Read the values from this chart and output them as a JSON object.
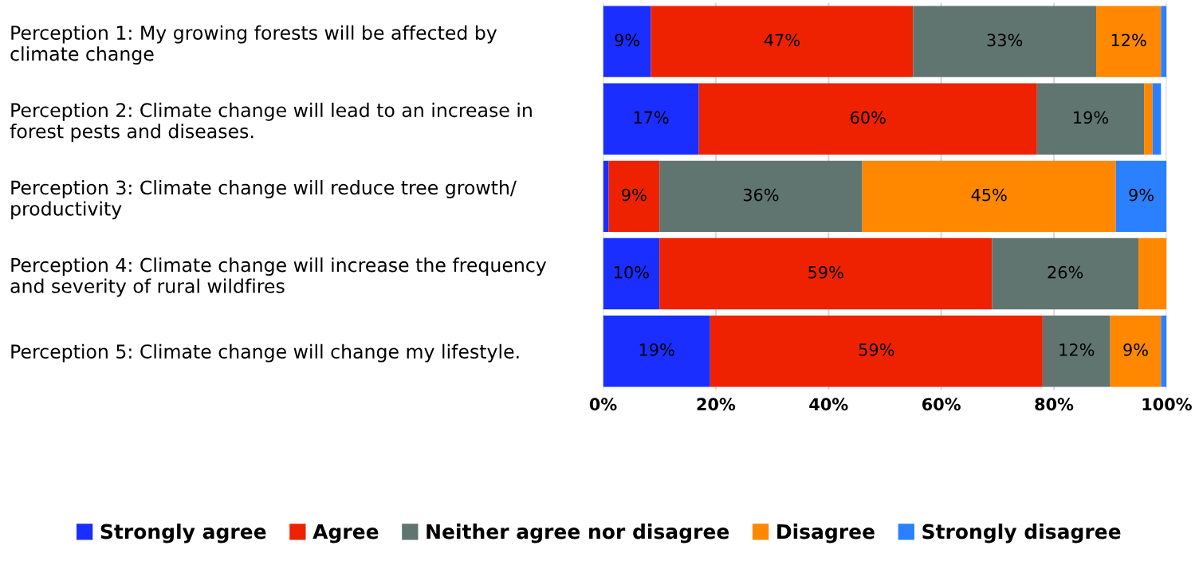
{
  "chart_data": {
    "type": "bar",
    "orientation": "horizontal",
    "stacked": true,
    "categories": [
      "Perception 1: My growing forests will be affected by\nclimate change",
      "Perception 2: Climate change will lead to an increase in\nforest pests and diseases.",
      "Perception 3: Climate change will reduce tree growth/\nproductivity",
      "Perception 4: Climate change will increase the frequency\nand severity of rural wildfires",
      "Perception 5: Climate change will change my lifestyle."
    ],
    "series": [
      {
        "name": "Strongly agree",
        "color": "#1a2eff",
        "values": [
          8.5,
          17,
          1,
          10,
          19
        ],
        "value_labels": [
          "9%",
          "17%",
          null,
          "10%",
          "19%"
        ]
      },
      {
        "name": "Agree",
        "color": "#ee2200",
        "values": [
          46.5,
          60,
          9,
          59,
          59
        ],
        "value_labels": [
          "47%",
          "60%",
          "9%",
          "59%",
          "59%"
        ]
      },
      {
        "name": "Neither agree nor disagree",
        "color": "#607570",
        "values": [
          32.5,
          19,
          36,
          26,
          12
        ],
        "value_labels": [
          "33%",
          "19%",
          "36%",
          "26%",
          "12%"
        ]
      },
      {
        "name": "Disagree",
        "color": "#ff8800",
        "values": [
          11.5,
          1.5,
          45,
          5,
          9
        ],
        "value_labels": [
          "12%",
          null,
          "45%",
          null,
          "9%"
        ]
      },
      {
        "name": "Strongly disagree",
        "color": "#2a80ff",
        "values": [
          1,
          1.5,
          9,
          0,
          1
        ],
        "value_labels": [
          null,
          null,
          "9%",
          null,
          null
        ]
      }
    ],
    "xlim": [
      0,
      100
    ],
    "xticks": [
      {
        "value": 0,
        "label": "0%"
      },
      {
        "value": 20,
        "label": "20%"
      },
      {
        "value": 40,
        "label": "40%"
      },
      {
        "value": 60,
        "label": "60%"
      },
      {
        "value": 80,
        "label": "80%"
      },
      {
        "value": 100,
        "label": "100%"
      }
    ],
    "grid": "x",
    "legend": "bottom"
  }
}
